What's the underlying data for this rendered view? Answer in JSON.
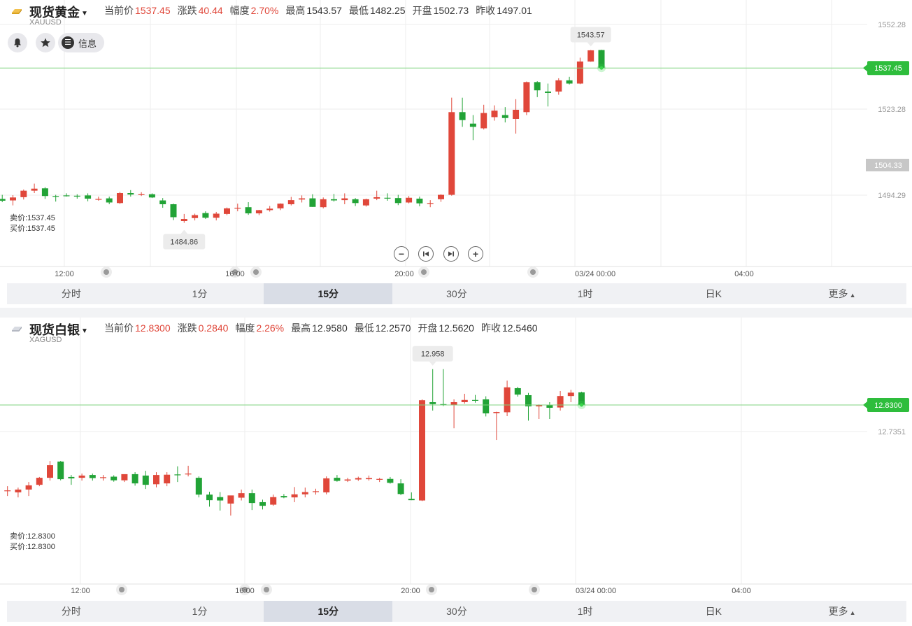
{
  "panels": [
    {
      "name": "现货黄金",
      "code": "XAUUSD",
      "quotes": [
        {
          "label": "当前价",
          "value": "1537.45",
          "up": true
        },
        {
          "label": "涨跌",
          "value": "40.44",
          "up": true
        },
        {
          "label": "幅度",
          "value": "2.70%",
          "up": true
        },
        {
          "label": "最高",
          "value": "1543.57",
          "up": false
        },
        {
          "label": "最低",
          "value": "1482.25",
          "up": false
        },
        {
          "label": "开盘",
          "value": "1502.73",
          "up": false
        },
        {
          "label": "昨收",
          "value": "1497.01",
          "up": false
        }
      ],
      "tools": {
        "info_label": "信息",
        "bell_icon": "bell-icon",
        "star_icon": "star-icon",
        "info_icon": "menu-icon"
      },
      "bid": "卖价:1537.45",
      "ask": "买价:1537.45",
      "tabs": [
        "分时",
        "1分",
        "15分",
        "30分",
        "1时",
        "日K",
        "更多"
      ],
      "active_tab": 2,
      "current_price_tag": "1537.45",
      "crosshair_price_tag": "1504.33",
      "high_label": "1543.57",
      "low_label": "1484.86",
      "axis_labels": [
        "1552.28",
        "1523.28",
        "1494.29"
      ],
      "time_labels": [
        "12:00",
        "16:00",
        "20:00",
        "03/24 00:00",
        "04:00"
      ],
      "zoom_controls": [
        "zoom-out",
        "rewind",
        "fast-forward",
        "zoom-in"
      ]
    },
    {
      "name": "现货白银",
      "code": "XAGUSD",
      "quotes": [
        {
          "label": "当前价",
          "value": "12.8300",
          "up": true
        },
        {
          "label": "涨跌",
          "value": "0.2840",
          "up": true
        },
        {
          "label": "幅度",
          "value": "2.26%",
          "up": true
        },
        {
          "label": "最高",
          "value": "12.9580",
          "up": false
        },
        {
          "label": "最低",
          "value": "12.2570",
          "up": false
        },
        {
          "label": "开盘",
          "value": "12.5620",
          "up": false
        },
        {
          "label": "昨收",
          "value": "12.5460",
          "up": false
        }
      ],
      "bid": "卖价:12.8300",
      "ask": "买价:12.8300",
      "tabs": [
        "分时",
        "1分",
        "15分",
        "30分",
        "1时",
        "日K",
        "更多"
      ],
      "active_tab": 2,
      "current_price_tag": "12.8300",
      "high_label": "12.958",
      "axis_labels": [
        "12.7351"
      ],
      "time_labels": [
        "12:00",
        "16:00",
        "20:00",
        "03/24 00:00",
        "04:00"
      ]
    }
  ],
  "colors": {
    "up": "#e0473a",
    "down": "#21a336",
    "price_line": "#7fd37f",
    "tag_green": "#2ebd3c",
    "grid": "#eeeeee"
  },
  "chart_data": [
    {
      "type": "candlestick",
      "title": "现货黄金",
      "x": [
        "12:00",
        "16:00",
        "20:00",
        "03/24 00:00",
        "04:00"
      ],
      "ylim": [
        1475,
        1555
      ],
      "ohlc": [
        [
          1493.0,
          1494.4,
          1491.9,
          1492.4
        ],
        [
          1492.5,
          1494.3,
          1490.8,
          1493.5
        ],
        [
          1493.6,
          1496.2,
          1492.8,
          1495.8
        ],
        [
          1495.8,
          1498.2,
          1495.0,
          1496.5
        ],
        [
          1496.6,
          1497.0,
          1493.0,
          1494.0
        ],
        [
          1494.0,
          1494.4,
          1492.1,
          1493.8
        ],
        [
          1494.2,
          1494.9,
          1493.8,
          1494.1
        ],
        [
          1494.1,
          1494.6,
          1493.1,
          1493.8
        ],
        [
          1494.2,
          1494.9,
          1492.2,
          1493.1
        ],
        [
          1493.0,
          1493.8,
          1492.4,
          1493.0
        ],
        [
          1493.2,
          1493.8,
          1491.2,
          1491.8
        ],
        [
          1491.6,
          1495.4,
          1491.3,
          1495.0
        ],
        [
          1495.0,
          1496.0,
          1493.8,
          1494.5
        ],
        [
          1494.6,
          1495.3,
          1494.0,
          1494.6
        ],
        [
          1494.6,
          1494.9,
          1493.3,
          1493.5
        ],
        [
          1492.5,
          1493.3,
          1490.0,
          1491.2
        ],
        [
          1491.2,
          1491.4,
          1485.8,
          1486.8
        ],
        [
          1485.5,
          1487.9,
          1484.9,
          1486.2
        ],
        [
          1486.5,
          1488.0,
          1485.7,
          1487.5
        ],
        [
          1488.2,
          1488.8,
          1486.2,
          1486.6
        ],
        [
          1486.6,
          1488.6,
          1485.7,
          1488.0
        ],
        [
          1487.9,
          1490.1,
          1487.5,
          1489.8
        ],
        [
          1489.8,
          1491.4,
          1488.8,
          1490.0
        ],
        [
          1490.2,
          1491.9,
          1487.6,
          1488.1
        ],
        [
          1488.1,
          1489.3,
          1487.5,
          1489.2
        ],
        [
          1489.2,
          1490.6,
          1488.7,
          1489.7
        ],
        [
          1489.8,
          1491.5,
          1489.2,
          1491.4
        ],
        [
          1491.2,
          1493.7,
          1490.8,
          1492.6
        ],
        [
          1492.8,
          1494.2,
          1491.8,
          1493.2
        ],
        [
          1493.2,
          1494.6,
          1490.3,
          1490.3
        ],
        [
          1490.2,
          1493.5,
          1489.8,
          1492.9
        ],
        [
          1492.9,
          1494.7,
          1492.1,
          1492.5
        ],
        [
          1492.6,
          1494.9,
          1491.2,
          1493.2
        ],
        [
          1492.9,
          1493.3,
          1490.6,
          1491.6
        ],
        [
          1490.8,
          1493.1,
          1490.4,
          1492.9
        ],
        [
          1493.1,
          1495.8,
          1492.6,
          1493.6
        ],
        [
          1493.4,
          1494.9,
          1492.4,
          1493.3
        ],
        [
          1493.3,
          1494.4,
          1490.9,
          1491.6
        ],
        [
          1491.8,
          1494.0,
          1491.5,
          1493.4
        ],
        [
          1493.1,
          1493.8,
          1490.5,
          1491.5
        ],
        [
          1491.3,
          1492.6,
          1490.2,
          1491.6
        ],
        [
          1492.9,
          1494.6,
          1492.0,
          1494.4
        ],
        [
          1494.4,
          1527.4,
          1494.1,
          1522.5
        ],
        [
          1522.5,
          1527.4,
          1517.5,
          1519.8
        ],
        [
          1518.6,
          1521.5,
          1513.0,
          1517.5
        ],
        [
          1517.0,
          1525.0,
          1516.6,
          1522.2
        ],
        [
          1520.8,
          1524.8,
          1519.6,
          1523.0
        ],
        [
          1521.5,
          1524.2,
          1519.0,
          1520.5
        ],
        [
          1520.2,
          1526.9,
          1515.2,
          1523.3
        ],
        [
          1522.5,
          1532.9,
          1521.5,
          1532.7
        ],
        [
          1532.7,
          1533.0,
          1527.6,
          1529.9
        ],
        [
          1529.5,
          1532.2,
          1524.4,
          1529.0
        ],
        [
          1529.5,
          1534.0,
          1528.4,
          1533.3
        ],
        [
          1533.3,
          1534.5,
          1531.9,
          1532.2
        ],
        [
          1532.2,
          1541.0,
          1532.0,
          1539.7
        ],
        [
          1539.7,
          1543.6,
          1539.6,
          1543.5
        ],
        [
          1543.6,
          1543.7,
          1537.5,
          1537.5
        ]
      ]
    },
    {
      "type": "candlestick",
      "title": "现货白银",
      "x": [
        "12:00",
        "16:00",
        "20:00",
        "03/24 00:00",
        "04:00"
      ],
      "ylim": [
        12.2,
        13.0
      ],
      "ohlc": [
        [
          12.535,
          12.546,
          12.51,
          12.525
        ],
        [
          12.525,
          12.54,
          12.505,
          12.525
        ],
        [
          12.518,
          12.535,
          12.5,
          12.528
        ],
        [
          12.528,
          12.555,
          12.505,
          12.543
        ],
        [
          12.545,
          12.573,
          12.54,
          12.57
        ],
        [
          12.57,
          12.63,
          12.56,
          12.615
        ],
        [
          12.628,
          12.63,
          12.561,
          12.565
        ],
        [
          12.573,
          12.58,
          12.545,
          12.568
        ],
        [
          12.57,
          12.585,
          12.56,
          12.578
        ],
        [
          12.58,
          12.585,
          12.56,
          12.569
        ],
        [
          12.569,
          12.58,
          12.56,
          12.572
        ],
        [
          12.574,
          12.579,
          12.556,
          12.561
        ],
        [
          12.561,
          12.58,
          12.555,
          12.583
        ],
        [
          12.583,
          12.59,
          12.542,
          12.55
        ],
        [
          12.578,
          12.595,
          12.53,
          12.545
        ],
        [
          12.547,
          12.59,
          12.536,
          12.58
        ],
        [
          12.55,
          12.59,
          12.54,
          12.581
        ],
        [
          12.582,
          12.611,
          12.555,
          12.581
        ],
        [
          12.582,
          12.613,
          12.575,
          12.585
        ],
        [
          12.57,
          12.575,
          12.5,
          12.51
        ],
        [
          12.51,
          12.52,
          12.467,
          12.49
        ],
        [
          12.501,
          12.519,
          12.453,
          12.489
        ],
        [
          12.478,
          12.5,
          12.435,
          12.507
        ],
        [
          12.499,
          12.528,
          12.489,
          12.515
        ],
        [
          12.515,
          12.528,
          12.455,
          12.48
        ],
        [
          12.483,
          12.492,
          12.457,
          12.47
        ],
        [
          12.474,
          12.51,
          12.47,
          12.501
        ],
        [
          12.505,
          12.512,
          12.497,
          12.5
        ],
        [
          12.5,
          12.537,
          12.483,
          12.511
        ],
        [
          12.511,
          12.535,
          12.5,
          12.519
        ],
        [
          12.519,
          12.531,
          12.51,
          12.522
        ],
        [
          12.518,
          12.575,
          12.511,
          12.568
        ],
        [
          12.57,
          12.58,
          12.556,
          12.559
        ],
        [
          12.56,
          12.57,
          12.555,
          12.564
        ],
        [
          12.564,
          12.574,
          12.559,
          12.569
        ],
        [
          12.565,
          12.578,
          12.56,
          12.569
        ],
        [
          12.566,
          12.57,
          12.555,
          12.566
        ],
        [
          12.566,
          12.573,
          12.549,
          12.552
        ],
        [
          12.55,
          12.565,
          12.508,
          12.512
        ],
        [
          12.495,
          12.518,
          12.49,
          12.49
        ],
        [
          12.489,
          12.85,
          12.487,
          12.847
        ],
        [
          12.84,
          12.958,
          12.81,
          12.833
        ],
        [
          12.833,
          12.958,
          12.826,
          12.832
        ],
        [
          12.829,
          12.85,
          12.747,
          12.84
        ],
        [
          12.84,
          12.87,
          12.835,
          12.848
        ],
        [
          12.848,
          12.866,
          12.838,
          12.845
        ],
        [
          12.85,
          12.861,
          12.789,
          12.8
        ],
        [
          12.801,
          12.806,
          12.705,
          12.805
        ],
        [
          12.804,
          12.917,
          12.79,
          12.893
        ],
        [
          12.89,
          12.895,
          12.86,
          12.867
        ],
        [
          12.865,
          12.873,
          12.774,
          12.825
        ],
        [
          12.825,
          12.832,
          12.78,
          12.829
        ],
        [
          12.829,
          12.84,
          12.78,
          12.82
        ],
        [
          12.821,
          12.88,
          12.81,
          12.862
        ],
        [
          12.862,
          12.884,
          12.84,
          12.874
        ],
        [
          12.875,
          12.877,
          12.828,
          12.83
        ]
      ]
    }
  ]
}
